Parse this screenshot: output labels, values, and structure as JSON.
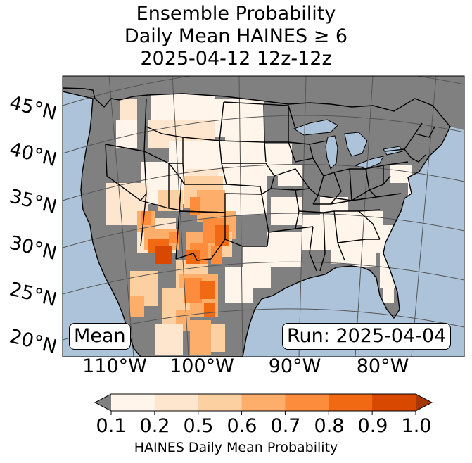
{
  "title": {
    "line1": "Ensemble Probability",
    "line2": "Daily Mean HAINES ≥ 6",
    "line3": "2025-04-12 12z-12z"
  },
  "map": {
    "latitude_labels": [
      "45°N",
      "40°N",
      "35°N",
      "30°N",
      "25°N",
      "20°N"
    ],
    "longitude_labels": [
      "110°W",
      "100°W",
      "90°W",
      "80°W"
    ],
    "mean_box": "Mean",
    "run_box": "Run: 2025-04-04",
    "colors": {
      "ocean": "#adc3da",
      "land_gray": "#808080",
      "borders": "#000000",
      "graticule": "#555555"
    }
  },
  "colorbar": {
    "ticks": [
      "0.1",
      "0.2",
      "0.5",
      "0.6",
      "0.7",
      "0.8",
      "0.9",
      "1.0"
    ],
    "colors": [
      "#fff5eb",
      "#fee6ce",
      "#fdd0a2",
      "#fdae6b",
      "#fd8d3c",
      "#f16913",
      "#d94801"
    ],
    "under_color": "#808080",
    "over_color": "#a63603",
    "label": "HAINES Daily Mean Probability"
  }
}
